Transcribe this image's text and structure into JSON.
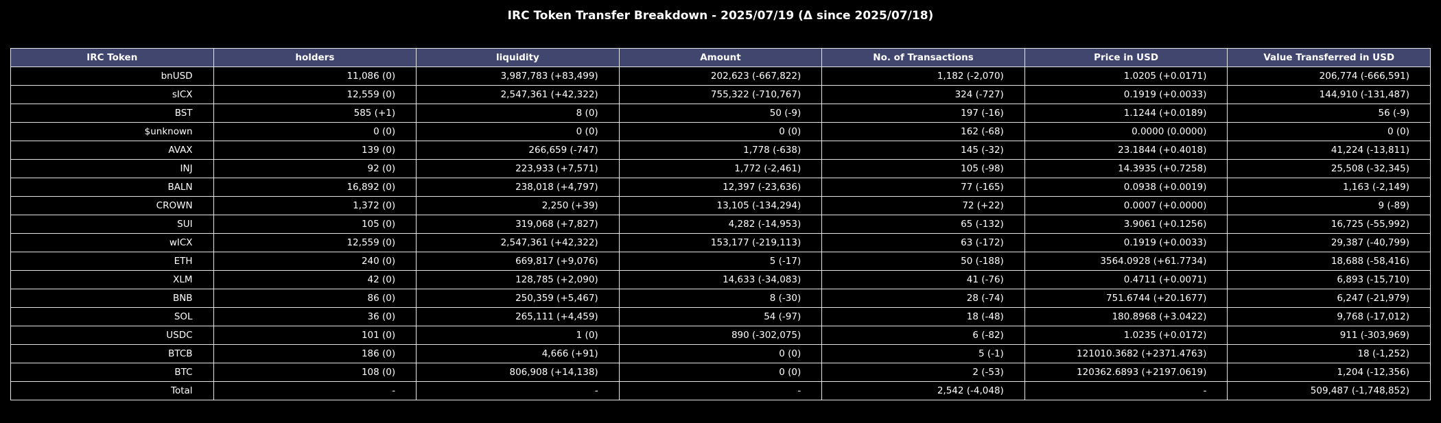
{
  "title": "IRC Token Transfer Breakdown - 2025/07/19 (Δ since 2025/07/18)",
  "columns": [
    "IRC Token",
    "holders",
    "liquidity",
    "Amount",
    "No. of Transactions",
    "Price in USD",
    "Value Transferred in USD"
  ],
  "rows": [
    [
      "bnUSD",
      "11,086 (0)",
      "3,987,783 (+83,499)",
      "202,623 (-667,822)",
      "1,182 (-2,070)",
      "1.0205 (+0.0171)",
      "206,774 (-666,591)"
    ],
    [
      "sICX",
      "12,559 (0)",
      "2,547,361 (+42,322)",
      "755,322 (-710,767)",
      "324 (-727)",
      "0.1919 (+0.0033)",
      "144,910 (-131,487)"
    ],
    [
      "BST",
      "585 (+1)",
      "8 (0)",
      "50 (-9)",
      "197 (-16)",
      "1.1244 (+0.0189)",
      "56 (-9)"
    ],
    [
      "$unknown",
      "0 (0)",
      "0 (0)",
      "0 (0)",
      "162 (-68)",
      "0.0000 (0.0000)",
      "0 (0)"
    ],
    [
      "AVAX",
      "139 (0)",
      "266,659 (-747)",
      "1,778 (-638)",
      "145 (-32)",
      "23.1844 (+0.4018)",
      "41,224 (-13,811)"
    ],
    [
      "INJ",
      "92 (0)",
      "223,933 (+7,571)",
      "1,772 (-2,461)",
      "105 (-98)",
      "14.3935 (+0.7258)",
      "25,508 (-32,345)"
    ],
    [
      "BALN",
      "16,892 (0)",
      "238,018 (+4,797)",
      "12,397 (-23,636)",
      "77 (-165)",
      "0.0938 (+0.0019)",
      "1,163 (-2,149)"
    ],
    [
      "CROWN",
      "1,372 (0)",
      "2,250 (+39)",
      "13,105 (-134,294)",
      "72 (+22)",
      "0.0007 (+0.0000)",
      "9 (-89)"
    ],
    [
      "SUI",
      "105 (0)",
      "319,068 (+7,827)",
      "4,282 (-14,953)",
      "65 (-132)",
      "3.9061 (+0.1256)",
      "16,725 (-55,992)"
    ],
    [
      "wICX",
      "12,559 (0)",
      "2,547,361 (+42,322)",
      "153,177 (-219,113)",
      "63 (-172)",
      "0.1919 (+0.0033)",
      "29,387 (-40,799)"
    ],
    [
      "ETH",
      "240 (0)",
      "669,817 (+9,076)",
      "5 (-17)",
      "50 (-188)",
      "3564.0928 (+61.7734)",
      "18,688 (-58,416)"
    ],
    [
      "XLM",
      "42 (0)",
      "128,785 (+2,090)",
      "14,633 (-34,083)",
      "41 (-76)",
      "0.4711 (+0.0071)",
      "6,893 (-15,710)"
    ],
    [
      "BNB",
      "86 (0)",
      "250,359 (+5,467)",
      "8 (-30)",
      "28 (-74)",
      "751.6744 (+20.1677)",
      "6,247 (-21,979)"
    ],
    [
      "SOL",
      "36 (0)",
      "265,111 (+4,459)",
      "54 (-97)",
      "18 (-48)",
      "180.8968 (+3.0422)",
      "9,768 (-17,012)"
    ],
    [
      "USDC",
      "101 (0)",
      "1 (0)",
      "890 (-302,075)",
      "6 (-82)",
      "1.0235 (+0.0172)",
      "911 (-303,969)"
    ],
    [
      "BTCB",
      "186 (0)",
      "4,666 (+91)",
      "0 (0)",
      "5 (-1)",
      "121010.3682 (+2371.4763)",
      "18 (-1,252)"
    ],
    [
      "BTC",
      "108 (0)",
      "806,908 (+14,138)",
      "0 (0)",
      "2 (-53)",
      "120362.6893 (+2197.0619)",
      "1,204 (-12,356)"
    ],
    [
      "Total",
      "-",
      "-",
      "-",
      "2,542 (-4,048)",
      "-",
      "509,487 (-1,748,852)"
    ]
  ],
  "colors": {
    "background": "#000000",
    "header_background": "#40466e",
    "grid_lines": "#e6e6e6",
    "text": "#ffffff"
  }
}
